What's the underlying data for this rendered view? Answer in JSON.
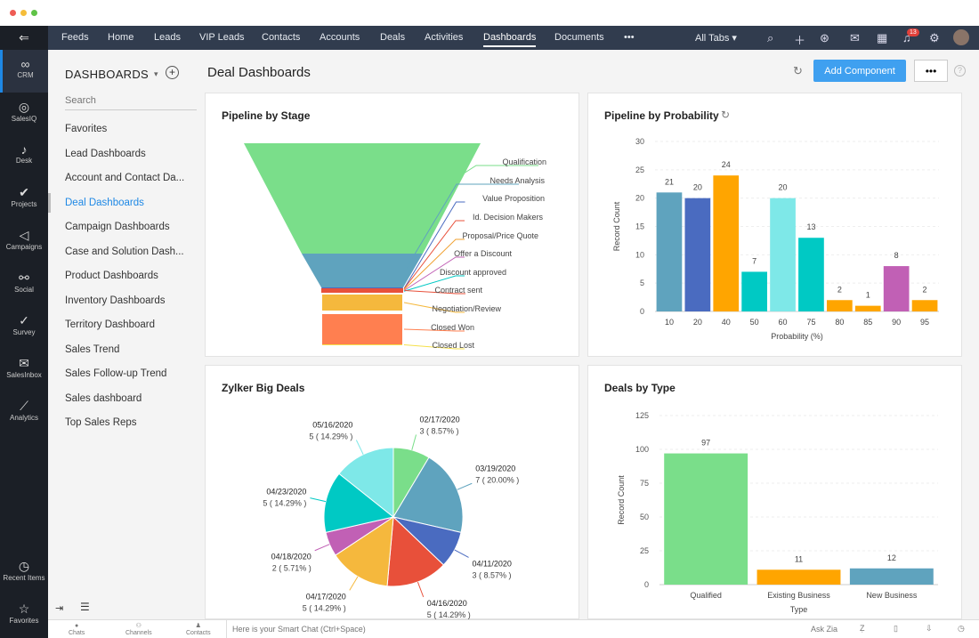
{
  "window": {
    "controls": [
      "#ee5c55",
      "#f5bd3a",
      "#5fc347"
    ]
  },
  "topnav": {
    "tabs": [
      "Feeds",
      "Home",
      "Leads",
      "VIP Leads",
      "Contacts",
      "Accounts",
      "Deals",
      "Activities",
      "Dashboards",
      "Documents",
      "•••"
    ],
    "active": "Dashboards",
    "all_tabs": "All Tabs ▾",
    "notifications": "13"
  },
  "rail": {
    "items": [
      {
        "label": "CRM",
        "icon": "crm-icon"
      },
      {
        "label": "SalesIQ",
        "icon": "salesiq-icon"
      },
      {
        "label": "Desk",
        "icon": "desk-icon"
      },
      {
        "label": "Projects",
        "icon": "projects-icon"
      },
      {
        "label": "Campaigns",
        "icon": "campaigns-icon"
      },
      {
        "label": "Social",
        "icon": "social-icon"
      },
      {
        "label": "Survey",
        "icon": "survey-icon"
      },
      {
        "label": "SalesInbox",
        "icon": "salesinbox-icon"
      },
      {
        "label": "Analytics",
        "icon": "analytics-icon"
      }
    ],
    "recent": "Recent Items",
    "favorites": "Favorites"
  },
  "sidebar": {
    "title": "DASHBOARDS",
    "search_placeholder": "Search",
    "items": [
      "Favorites",
      "Lead Dashboards",
      "Account and Contact Da...",
      "Deal Dashboards",
      "Campaign Dashboards",
      "Case and Solution Dash...",
      "Product Dashboards",
      "Inventory Dashboards",
      "Territory Dashboard",
      "Sales Trend",
      "Sales Follow-up Trend",
      "Sales dashboard",
      "Top Sales Reps"
    ],
    "active": "Deal Dashboards"
  },
  "main": {
    "title": "Deal Dashboards",
    "add_component": "Add Component",
    "more": "•••"
  },
  "bottombar": {
    "chats": "Chats",
    "channels": "Channels",
    "contacts": "Contacts",
    "smart_chat_placeholder": "Here is your Smart Chat (Ctrl+Space)",
    "ask_zia": "Ask Zia"
  },
  "chart_data": [
    {
      "type": "funnel",
      "title": "Pipeline by Stage",
      "stages": [
        {
          "name": "Qualification",
          "color": "#7ade8a"
        },
        {
          "name": "Needs Analysis",
          "color": "#5fa3be"
        },
        {
          "name": "Value Proposition",
          "color": "#4a6bc0"
        },
        {
          "name": "Id. Decision Makers",
          "color": "#e8503a"
        },
        {
          "name": "Proposal/Price Quote",
          "color": "#f0a030"
        },
        {
          "name": "Offer a Discount",
          "color": "#c160b5"
        },
        {
          "name": "Discount approved",
          "color": "#00c9c4"
        },
        {
          "name": "Contract sent",
          "color": "#e8503a"
        },
        {
          "name": "Negotiation/Review",
          "color": "#f5b83d"
        },
        {
          "name": "Closed Won",
          "color": "#ff7f50"
        },
        {
          "name": "Closed Lost",
          "color": "#f5e04a"
        }
      ]
    },
    {
      "type": "bar",
      "title": "Pipeline by Probability",
      "xlabel": "Probability (%)",
      "ylabel": "Record Count",
      "ylim": [
        0,
        30
      ],
      "yticks": [
        0,
        5,
        10,
        15,
        20,
        25,
        30
      ],
      "grid": true,
      "categories": [
        "10",
        "20",
        "40",
        "50",
        "60",
        "75",
        "80",
        "85",
        "90",
        "95"
      ],
      "values": [
        21,
        20,
        24,
        7,
        20,
        13,
        2,
        1,
        8,
        2
      ],
      "colors": [
        "#5fa3be",
        "#4a6bc0",
        "#ffa500",
        "#00c9c4",
        "#7ee8e8",
        "#00c9c4",
        "#ffa500",
        "#ffa500",
        "#c160b5",
        "#ffa500"
      ]
    },
    {
      "type": "pie",
      "title": "Zylker Big Deals",
      "slices": [
        {
          "label": "02/17/2020",
          "value": 3,
          "pct": "8.57%",
          "color": "#7ade8a"
        },
        {
          "label": "03/19/2020",
          "value": 7,
          "pct": "20.00%",
          "color": "#5fa3be"
        },
        {
          "label": "04/11/2020",
          "value": 3,
          "pct": "8.57%",
          "color": "#4a6bc0"
        },
        {
          "label": "04/16/2020",
          "value": 5,
          "pct": "14.29%",
          "color": "#e8503a"
        },
        {
          "label": "04/17/2020",
          "value": 5,
          "pct": "14.29%",
          "color": "#f5b83d"
        },
        {
          "label": "04/18/2020",
          "value": 2,
          "pct": "5.71%",
          "color": "#c160b5"
        },
        {
          "label": "04/23/2020",
          "value": 5,
          "pct": "14.29%",
          "color": "#00c9c4"
        },
        {
          "label": "05/16/2020",
          "value": 5,
          "pct": "14.29%",
          "color": "#7ee8e8"
        }
      ]
    },
    {
      "type": "bar",
      "title": "Deals by Type",
      "xlabel": "Type",
      "ylabel": "Record Count",
      "ylim": [
        0,
        125
      ],
      "yticks": [
        0,
        25,
        50,
        75,
        100,
        125
      ],
      "grid": true,
      "categories": [
        "Qualified",
        "Existing Business",
        "New Business"
      ],
      "values": [
        97,
        11,
        12
      ],
      "colors": [
        "#7ade8a",
        "#ffa500",
        "#5fa3be"
      ]
    }
  ]
}
